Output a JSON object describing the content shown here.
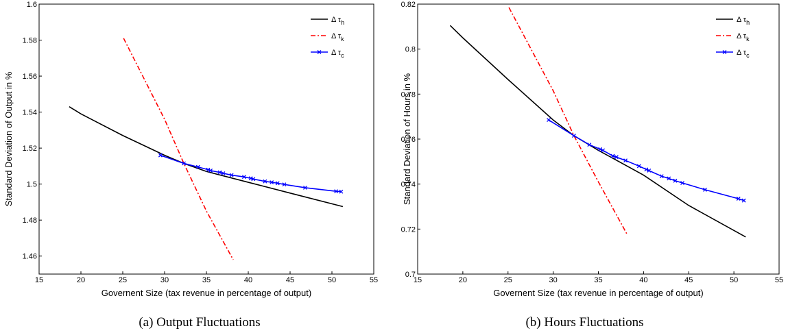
{
  "chart_data": [
    {
      "type": "line",
      "caption": "(a) Output Fluctuations",
      "xlabel": "Governent Size (tax revenue in percentage of output)",
      "ylabel": "Standard Deviation of Output in %",
      "xlim": [
        15,
        55
      ],
      "xticks": [
        15,
        20,
        25,
        30,
        35,
        40,
        45,
        50,
        55
      ],
      "ylim": [
        1.45,
        1.6
      ],
      "yticks": [
        1.46,
        1.48,
        1.5,
        1.52,
        1.54,
        1.56,
        1.58,
        1.6
      ],
      "legend": "upper right",
      "series": [
        {
          "name": "Δ τh",
          "color": "#000000",
          "linestyle": "solid",
          "marker": "none",
          "x": [
            18.6,
            20,
            25,
            30,
            32.3,
            35,
            40,
            45,
            51.3
          ],
          "values": [
            1.543,
            1.539,
            1.527,
            1.516,
            1.5115,
            1.507,
            1.501,
            1.495,
            1.4875
          ]
        },
        {
          "name": "Δ τk",
          "color": "#ff0000",
          "linestyle": "dashdot",
          "marker": "none",
          "x": [
            25.1,
            30,
            32.3,
            35,
            38.2
          ],
          "values": [
            1.581,
            1.536,
            1.5115,
            1.485,
            1.458
          ]
        },
        {
          "name": "Δ τc",
          "color": "#0000ff",
          "linestyle": "solid",
          "marker": "x",
          "x": [
            29.5,
            32.3,
            34,
            35.2,
            35.5,
            36.6,
            37,
            38,
            39.5,
            40.3,
            40.6,
            42,
            42.8,
            43.5,
            44.3,
            46.8,
            50.5,
            51.1
          ],
          "values": [
            1.516,
            1.5115,
            1.5095,
            1.508,
            1.5075,
            1.5065,
            1.506,
            1.505,
            1.504,
            1.5032,
            1.5028,
            1.5015,
            1.501,
            1.5005,
            1.4998,
            1.498,
            1.496,
            1.4958
          ]
        }
      ]
    },
    {
      "type": "line",
      "caption": "(b) Hours Fluctuations",
      "xlabel": "Governent Size (tax revenue in percentage of output)",
      "ylabel": "Standard Deviation of Hours in %",
      "xlim": [
        15,
        55
      ],
      "xticks": [
        15,
        20,
        25,
        30,
        35,
        40,
        45,
        50,
        55
      ],
      "ylim": [
        0.7,
        0.82
      ],
      "yticks": [
        0.7,
        0.72,
        0.74,
        0.76,
        0.78,
        0.8,
        0.82
      ],
      "legend": "upper right",
      "series": [
        {
          "name": "Δ τh",
          "color": "#000000",
          "linestyle": "solid",
          "marker": "none",
          "x": [
            18.6,
            20,
            25,
            30,
            32.3,
            35,
            40,
            45,
            51.3
          ],
          "values": [
            0.8105,
            0.805,
            0.7865,
            0.7685,
            0.7615,
            0.755,
            0.744,
            0.7305,
            0.7165
          ]
        },
        {
          "name": "Δ τk",
          "color": "#ff0000",
          "linestyle": "dashdot",
          "marker": "none",
          "x": [
            25.1,
            30,
            32.3,
            35,
            38.2
          ],
          "values": [
            0.8185,
            0.7815,
            0.7615,
            0.741,
            0.7175
          ]
        },
        {
          "name": "Δ τc",
          "color": "#0000ff",
          "linestyle": "solid",
          "marker": "x",
          "x": [
            29.5,
            32.3,
            34,
            35.2,
            35.5,
            36.6,
            37,
            38,
            39.5,
            40.3,
            40.6,
            42,
            42.8,
            43.5,
            44.3,
            46.8,
            50.5,
            51.1
          ],
          "values": [
            0.7685,
            0.7615,
            0.7575,
            0.7555,
            0.755,
            0.7525,
            0.752,
            0.7505,
            0.748,
            0.7465,
            0.746,
            0.7435,
            0.7425,
            0.7415,
            0.7405,
            0.7375,
            0.7335,
            0.7327
          ]
        }
      ]
    }
  ]
}
